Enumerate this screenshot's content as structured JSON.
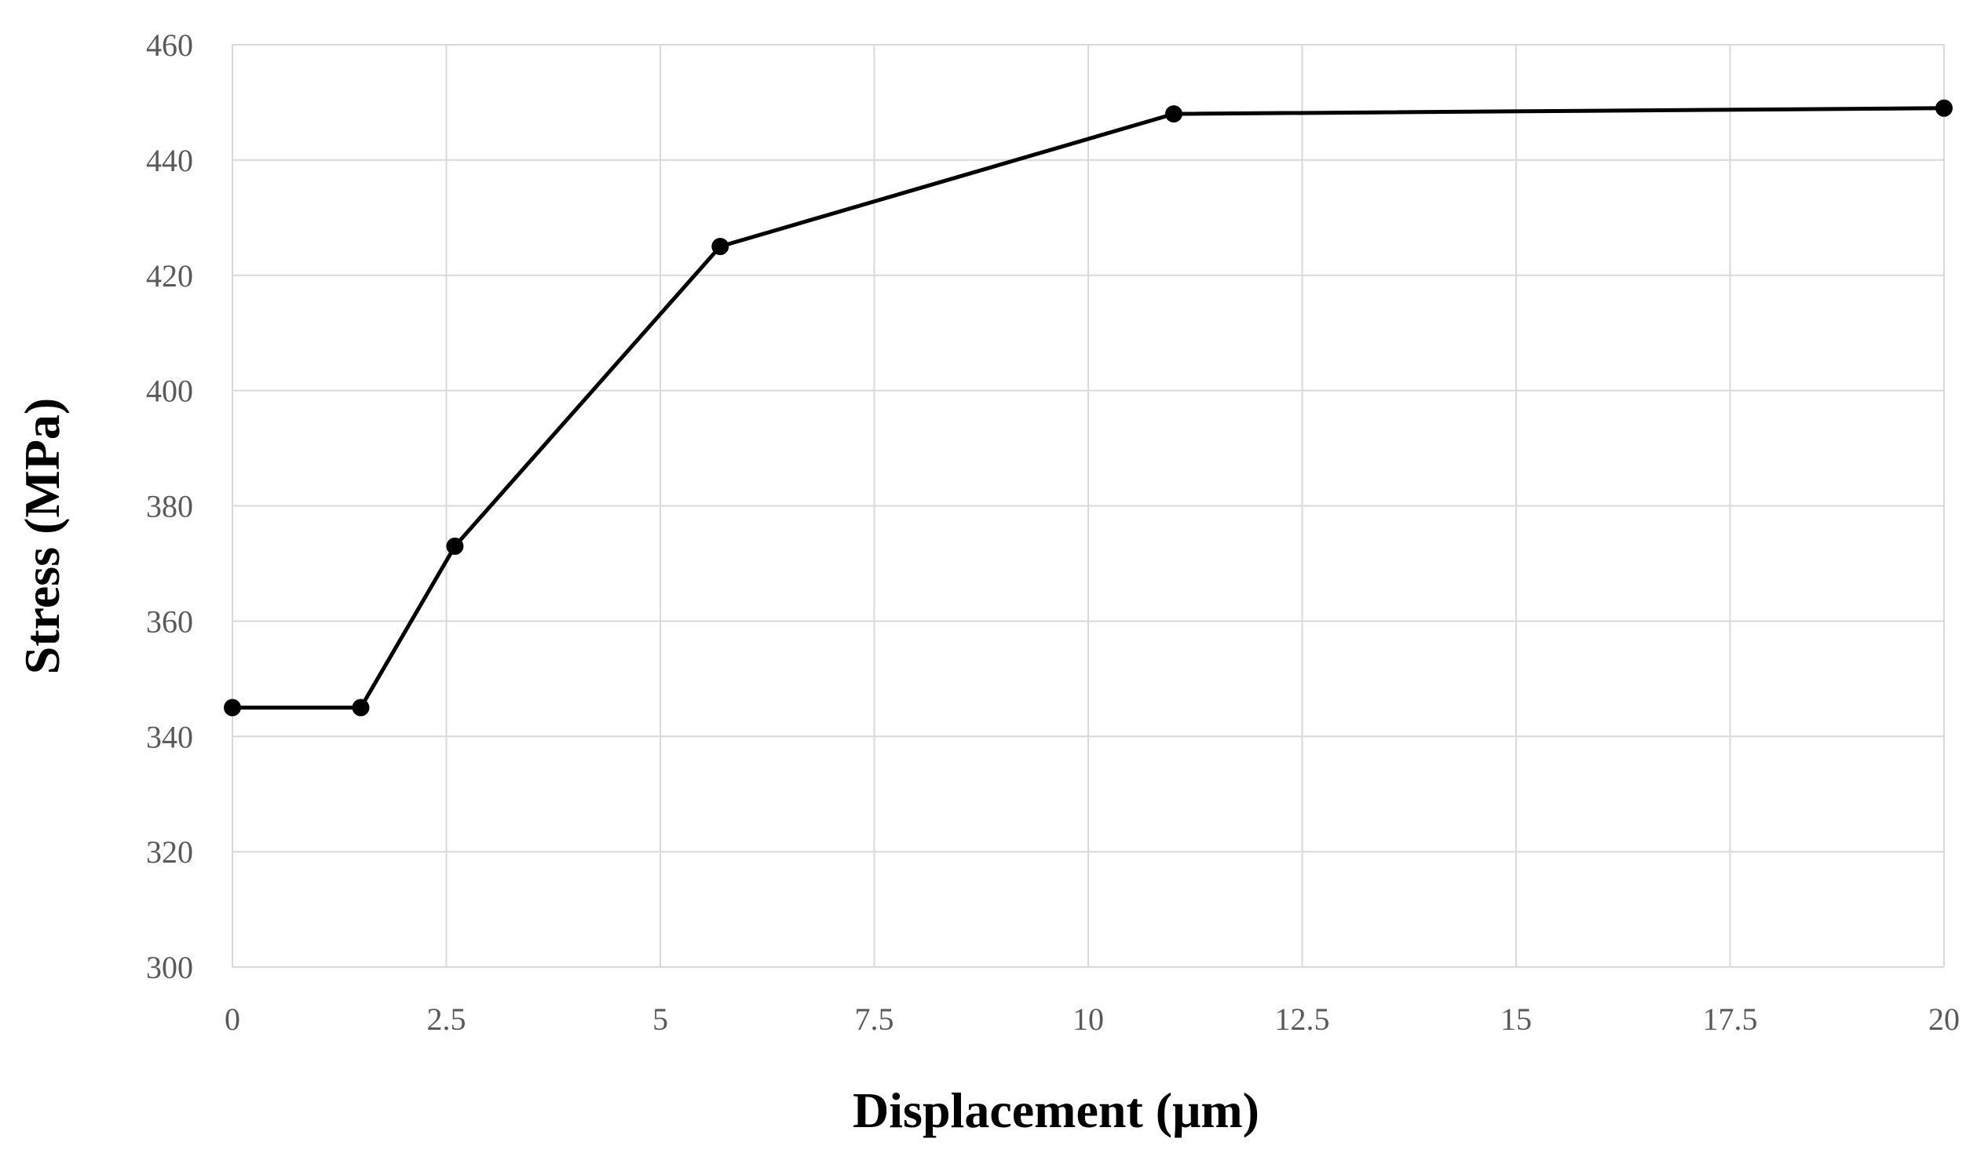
{
  "chart_data": {
    "type": "line",
    "title": "",
    "xlabel": "Displacement (μm)",
    "ylabel": "Stress (MPa)",
    "xlim": [
      0,
      20
    ],
    "ylim": [
      300,
      460
    ],
    "x_ticks": [
      "0",
      "2.5",
      "5",
      "7.5",
      "10",
      "12.5",
      "15",
      "17.5",
      "20"
    ],
    "y_ticks": [
      "300",
      "320",
      "340",
      "360",
      "380",
      "400",
      "420",
      "440",
      "460"
    ],
    "grid": true,
    "legend": "none",
    "line_color": "#000000",
    "marker": "circle",
    "series": [
      {
        "x": [
          0,
          1.5,
          2.6,
          5.7,
          11,
          20
        ],
        "y": [
          345,
          345,
          373,
          425,
          448,
          449
        ]
      }
    ]
  }
}
